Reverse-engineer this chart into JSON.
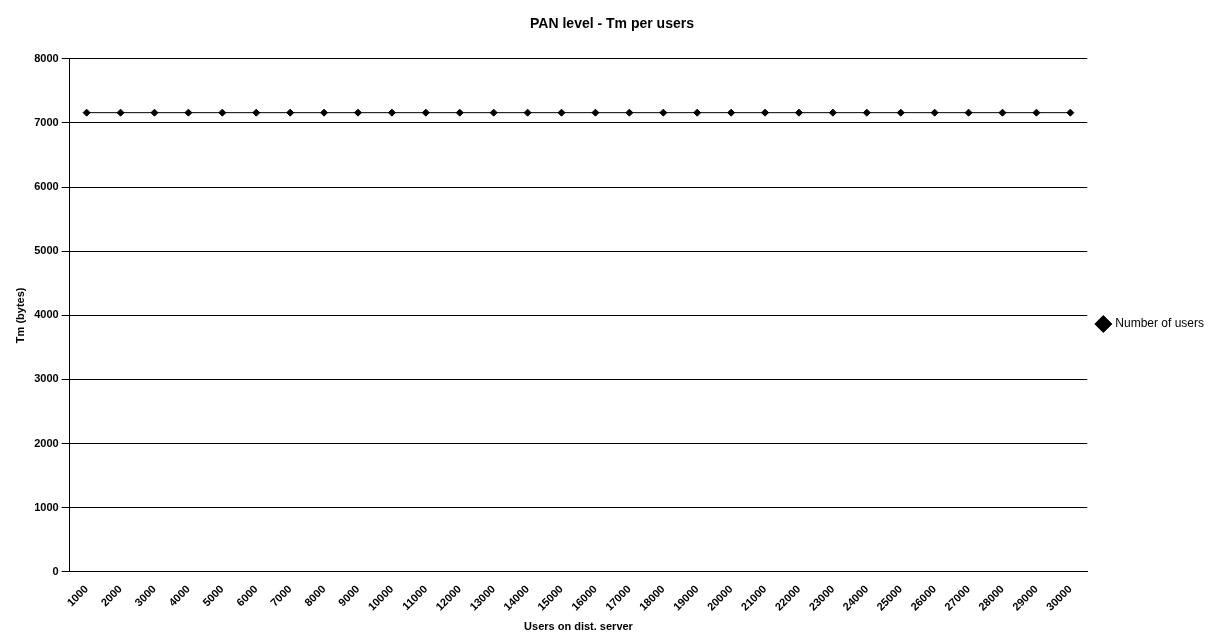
{
  "chart_data": {
    "type": "line",
    "title": "PAN level - Tm per users",
    "xlabel": "Users on dist. server",
    "ylabel": "Tm (bytes)",
    "categories": [
      "1000",
      "2000",
      "3000",
      "4000",
      "5000",
      "6000",
      "7000",
      "8000",
      "9000",
      "10000",
      "11000",
      "12000",
      "13000",
      "14000",
      "15000",
      "16000",
      "17000",
      "18000",
      "19000",
      "20000",
      "21000",
      "22000",
      "23000",
      "24000",
      "25000",
      "26000",
      "27000",
      "28000",
      "29000",
      "30000"
    ],
    "series": [
      {
        "name": "Number of users",
        "color": "#000000",
        "values": [
          7160,
          7160,
          7160,
          7160,
          7160,
          7160,
          7160,
          7160,
          7160,
          7160,
          7160,
          7160,
          7160,
          7160,
          7160,
          7160,
          7160,
          7160,
          7160,
          7160,
          7160,
          7160,
          7160,
          7160,
          7160,
          7160,
          7160,
          7160,
          7160,
          7160
        ]
      }
    ],
    "ylim": [
      0,
      8000
    ],
    "yticks": [
      0,
      1000,
      2000,
      3000,
      4000,
      5000,
      6000,
      7000,
      8000
    ],
    "grid": "y",
    "legend": "right",
    "marker": "diamond",
    "line_style": "solid"
  }
}
